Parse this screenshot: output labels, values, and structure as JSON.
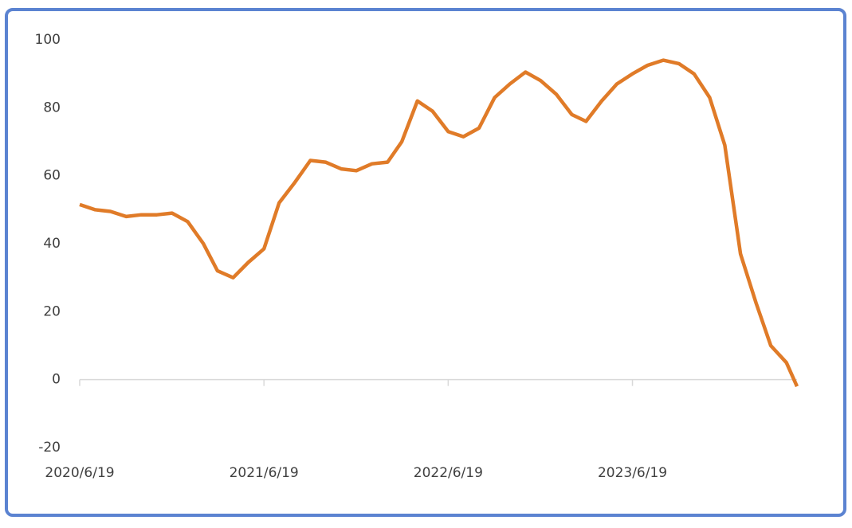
{
  "chart_data": {
    "type": "line",
    "x": [
      "2020/6/19",
      "2020/7/19",
      "2020/8/19",
      "2020/9/19",
      "2020/10/19",
      "2020/11/19",
      "2020/12/19",
      "2021/1/19",
      "2021/2/19",
      "2021/3/19",
      "2021/4/19",
      "2021/5/19",
      "2021/6/19",
      "2021/7/19",
      "2021/8/19",
      "2021/9/19",
      "2021/10/19",
      "2021/11/19",
      "2021/12/19",
      "2022/1/19",
      "2022/2/19",
      "2022/3/19",
      "2022/4/19",
      "2022/5/19",
      "2022/6/19",
      "2022/7/19",
      "2022/8/19",
      "2022/9/19",
      "2022/10/19",
      "2022/11/19",
      "2022/12/19",
      "2023/1/19",
      "2023/2/19",
      "2023/3/19",
      "2023/4/19",
      "2023/5/19",
      "2023/6/19",
      "2023/7/19",
      "2023/8/19",
      "2023/9/19",
      "2023/10/19",
      "2023/11/19",
      "2023/12/19",
      "2024/1/19",
      "2024/2/19",
      "2024/3/19",
      "2024/4/19",
      "2024/5/10"
    ],
    "series": [
      {
        "color": "#e07b28",
        "values": [
          51.5,
          50,
          49.5,
          48,
          48.5,
          48.5,
          49,
          46.5,
          40,
          32,
          30,
          34.5,
          38.5,
          52,
          58,
          64.5,
          64,
          62,
          61.5,
          63.5,
          64,
          70,
          82,
          79,
          73,
          71.5,
          74,
          83,
          87,
          90.5,
          88,
          84,
          78,
          76,
          82,
          87,
          90,
          92.5,
          94,
          93,
          90,
          83,
          69,
          37,
          22.5,
          10,
          5,
          -2
        ]
      }
    ],
    "xlim": [
      "2020/6/19",
      "2024/5/10"
    ],
    "xticks": [
      "2020/6/19",
      "2021/6/19",
      "2022/6/19",
      "2023/6/19"
    ],
    "ylim": [
      -20,
      100
    ],
    "yticks": [
      -20,
      0,
      20,
      40,
      60,
      80,
      100
    ]
  }
}
